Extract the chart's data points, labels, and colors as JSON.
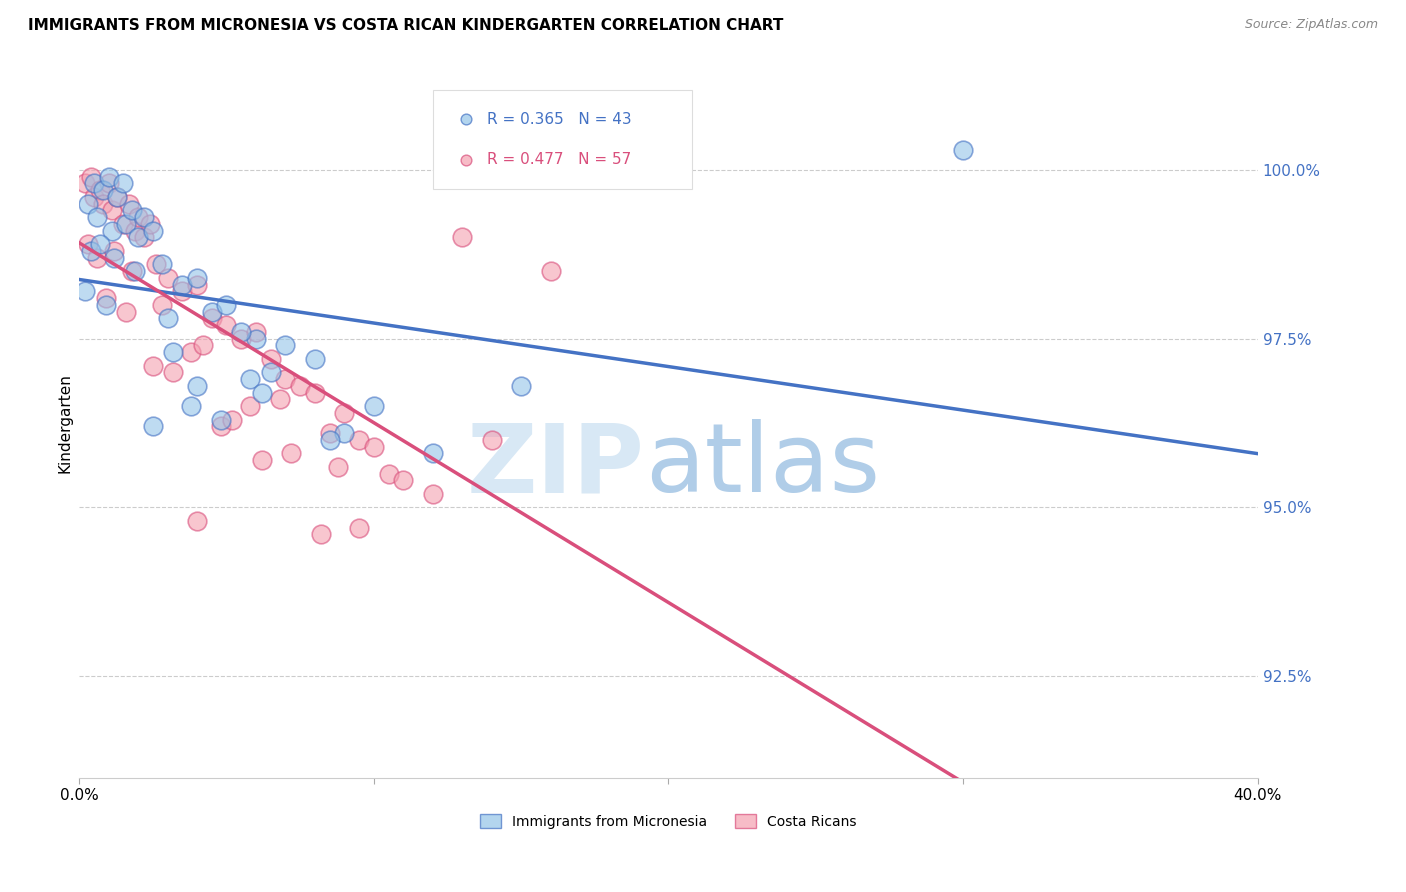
{
  "title": "IMMIGRANTS FROM MICRONESIA VS COSTA RICAN KINDERGARTEN CORRELATION CHART",
  "source": "Source: ZipAtlas.com",
  "ylabel": "Kindergarten",
  "yaxis_labels": [
    "100.0%",
    "97.5%",
    "95.0%",
    "92.5%"
  ],
  "yaxis_values": [
    100.0,
    97.5,
    95.0,
    92.5
  ],
  "xlim": [
    0.0,
    40.0
  ],
  "ylim": [
    91.0,
    101.5
  ],
  "legend1_label": "Immigrants from Micronesia",
  "legend2_label": "Costa Ricans",
  "R_blue": 0.365,
  "N_blue": 43,
  "R_pink": 0.477,
  "N_pink": 57,
  "blue_color": "#93c4e8",
  "pink_color": "#f4a0b0",
  "blue_line_color": "#4472c4",
  "pink_line_color": "#d94f7c",
  "blue_dots": [
    [
      0.3,
      99.5
    ],
    [
      0.5,
      99.8
    ],
    [
      0.6,
      99.3
    ],
    [
      0.8,
      99.7
    ],
    [
      1.0,
      99.9
    ],
    [
      1.1,
      99.1
    ],
    [
      1.3,
      99.6
    ],
    [
      1.5,
      99.8
    ],
    [
      1.6,
      99.2
    ],
    [
      1.8,
      99.4
    ],
    [
      2.0,
      99.0
    ],
    [
      2.2,
      99.3
    ],
    [
      2.5,
      99.1
    ],
    [
      0.4,
      98.8
    ],
    [
      0.7,
      98.9
    ],
    [
      1.2,
      98.7
    ],
    [
      1.9,
      98.5
    ],
    [
      2.8,
      98.6
    ],
    [
      3.5,
      98.3
    ],
    [
      4.0,
      98.4
    ],
    [
      0.2,
      98.2
    ],
    [
      0.9,
      98.0
    ],
    [
      3.0,
      97.8
    ],
    [
      4.5,
      97.9
    ],
    [
      5.0,
      98.0
    ],
    [
      6.0,
      97.5
    ],
    [
      3.2,
      97.3
    ],
    [
      5.5,
      97.6
    ],
    [
      7.0,
      97.4
    ],
    [
      8.0,
      97.2
    ],
    [
      6.5,
      97.0
    ],
    [
      4.0,
      96.8
    ],
    [
      3.8,
      96.5
    ],
    [
      5.8,
      96.9
    ],
    [
      2.5,
      96.2
    ],
    [
      6.2,
      96.7
    ],
    [
      4.8,
      96.3
    ],
    [
      9.0,
      96.1
    ],
    [
      10.0,
      96.5
    ],
    [
      8.5,
      96.0
    ],
    [
      30.0,
      100.3
    ],
    [
      12.0,
      95.8
    ],
    [
      15.0,
      96.8
    ]
  ],
  "pink_dots": [
    [
      0.2,
      99.8
    ],
    [
      0.4,
      99.9
    ],
    [
      0.5,
      99.6
    ],
    [
      0.7,
      99.7
    ],
    [
      0.8,
      99.5
    ],
    [
      1.0,
      99.8
    ],
    [
      1.1,
      99.4
    ],
    [
      1.3,
      99.6
    ],
    [
      1.5,
      99.2
    ],
    [
      1.7,
      99.5
    ],
    [
      1.9,
      99.1
    ],
    [
      2.0,
      99.3
    ],
    [
      2.2,
      99.0
    ],
    [
      2.4,
      99.2
    ],
    [
      0.3,
      98.9
    ],
    [
      0.6,
      98.7
    ],
    [
      1.2,
      98.8
    ],
    [
      1.8,
      98.5
    ],
    [
      2.6,
      98.6
    ],
    [
      3.0,
      98.4
    ],
    [
      3.5,
      98.2
    ],
    [
      4.0,
      98.3
    ],
    [
      0.9,
      98.1
    ],
    [
      1.6,
      97.9
    ],
    [
      2.8,
      98.0
    ],
    [
      4.5,
      97.8
    ],
    [
      5.0,
      97.7
    ],
    [
      5.5,
      97.5
    ],
    [
      6.0,
      97.6
    ],
    [
      3.8,
      97.3
    ],
    [
      4.2,
      97.4
    ],
    [
      2.5,
      97.1
    ],
    [
      3.2,
      97.0
    ],
    [
      6.5,
      97.2
    ],
    [
      7.0,
      96.9
    ],
    [
      7.5,
      96.8
    ],
    [
      8.0,
      96.7
    ],
    [
      5.8,
      96.5
    ],
    [
      6.8,
      96.6
    ],
    [
      9.0,
      96.4
    ],
    [
      4.8,
      96.2
    ],
    [
      5.2,
      96.3
    ],
    [
      8.5,
      96.1
    ],
    [
      9.5,
      96.0
    ],
    [
      10.0,
      95.9
    ],
    [
      7.2,
      95.8
    ],
    [
      8.8,
      95.6
    ],
    [
      10.5,
      95.5
    ],
    [
      11.0,
      95.4
    ],
    [
      6.2,
      95.7
    ],
    [
      12.0,
      95.2
    ],
    [
      13.0,
      99.0
    ],
    [
      16.0,
      98.5
    ],
    [
      14.0,
      96.0
    ],
    [
      4.0,
      94.8
    ],
    [
      9.5,
      94.7
    ],
    [
      8.2,
      94.6
    ]
  ]
}
